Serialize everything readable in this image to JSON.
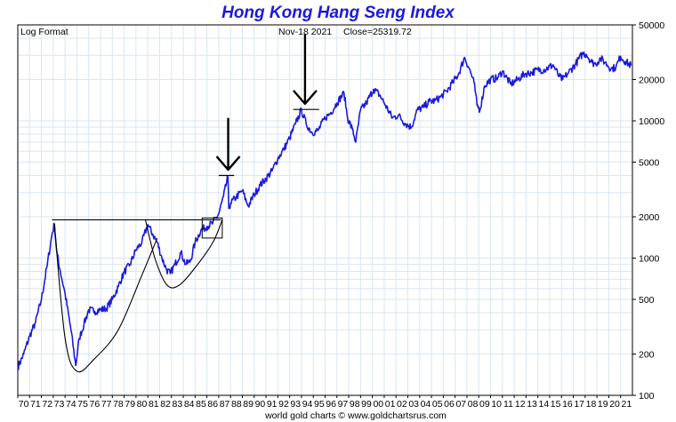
{
  "chart_data": {
    "type": "line",
    "title": "Hong Kong Hang Seng Index",
    "scale_label": "Log Format",
    "header_date": "Nov-18  2021",
    "header_close": "Close=25319.72",
    "footer": "world gold charts © www.goldchartsrus.com",
    "yscale": "log",
    "ylim": [
      100,
      50000
    ],
    "xlim": [
      1970,
      2022
    ],
    "grid": true,
    "line_color": "#1a1adc",
    "y_ticks": [
      100,
      200,
      500,
      1000,
      2000,
      5000,
      10000,
      20000,
      50000
    ],
    "y_tick_labels": [
      "100",
      "200",
      "500",
      "1000",
      "2000",
      "5000",
      "10000",
      "20000",
      "50000"
    ],
    "x_tick_labels": [
      "70",
      "71",
      "72",
      "73",
      "74",
      "75",
      "76",
      "77",
      "78",
      "79",
      "80",
      "81",
      "82",
      "83",
      "84",
      "85",
      "86",
      "87",
      "88",
      "89",
      "90",
      "91",
      "92",
      "93",
      "94",
      "95",
      "96",
      "97",
      "98",
      "99",
      "00",
      "01",
      "02",
      "03",
      "04",
      "05",
      "06",
      "07",
      "08",
      "09",
      "10",
      "11",
      "12",
      "13",
      "14",
      "15",
      "16",
      "17",
      "18",
      "19",
      "20",
      "21"
    ],
    "series": [
      {
        "x": [
          1970.0,
          1970.5,
          1971.0,
          1971.5,
          1972.0,
          1972.5,
          1972.9,
          1973.1,
          1973.3,
          1973.6,
          1974.0,
          1974.5,
          1974.9,
          1975.2,
          1975.6,
          1976.0,
          1976.5,
          1977.0,
          1977.5,
          1978.0,
          1978.5,
          1979.0,
          1979.5,
          1980.0,
          1980.5,
          1981.0,
          1981.4,
          1981.8,
          1982.2,
          1982.6,
          1982.9,
          1983.3,
          1983.8,
          1984.2,
          1984.6,
          1985.0,
          1985.5,
          1986.0,
          1986.5,
          1987.0,
          1987.4,
          1987.78,
          1987.85,
          1988.0,
          1988.5,
          1989.0,
          1989.4,
          1989.5,
          1990.0,
          1990.5,
          1991.0,
          1991.5,
          1992.0,
          1992.5,
          1993.0,
          1993.5,
          1994.0,
          1994.4,
          1994.9,
          1995.4,
          1996.0,
          1996.5,
          1997.0,
          1997.6,
          1997.9,
          1998.3,
          1998.6,
          1999.0,
          1999.5,
          2000.1,
          2000.6,
          2001.0,
          2001.7,
          2002.2,
          2002.8,
          2003.3,
          2003.8,
          2004.3,
          2004.8,
          2005.3,
          2005.8,
          2006.3,
          2006.8,
          2007.3,
          2007.8,
          2008.2,
          2008.6,
          2008.85,
          2009.1,
          2009.5,
          2010.0,
          2010.6,
          2011.0,
          2011.7,
          2012.3,
          2012.9,
          2013.5,
          2014.0,
          2014.5,
          2015.3,
          2015.8,
          2016.1,
          2016.6,
          2017.2,
          2017.8,
          2018.1,
          2018.6,
          2018.9,
          2019.3,
          2019.7,
          2020.2,
          2020.6,
          2021.0,
          2021.4,
          2021.88
        ],
        "values": [
          160,
          200,
          270,
          340,
          500,
          900,
          1500,
          1770,
          1100,
          800,
          550,
          300,
          165,
          260,
          330,
          420,
          410,
          420,
          430,
          500,
          620,
          790,
          900,
          1150,
          1300,
          1750,
          1500,
          1300,
          1000,
          820,
          770,
          900,
          1100,
          900,
          950,
          1300,
          1600,
          1700,
          1800,
          2100,
          2800,
          3900,
          2300,
          2500,
          2800,
          3100,
          2500,
          2400,
          2900,
          3400,
          3800,
          4300,
          5300,
          6200,
          7500,
          9500,
          12000,
          9500,
          8200,
          8500,
          10500,
          11500,
          13500,
          16000,
          10500,
          8700,
          7000,
          12000,
          13500,
          17000,
          15500,
          13500,
          10500,
          11000,
          9500,
          9000,
          12000,
          12500,
          13800,
          14000,
          15000,
          16500,
          19000,
          22000,
          29000,
          24000,
          19000,
          13000,
          12000,
          18000,
          20000,
          20500,
          23000,
          18500,
          20000,
          22000,
          22500,
          23500,
          23500,
          25500,
          21000,
          20000,
          22500,
          26000,
          31000,
          30500,
          26500,
          26000,
          28500,
          26500,
          24000,
          24500,
          29500,
          27000,
          25320
        ],
        "color": "#1a1adc"
      }
    ],
    "annotations": [
      {
        "type": "horizontal-line",
        "x": [
          1972.9,
          1987.2
        ],
        "y": 1900
      },
      {
        "type": "cup-curve",
        "points": [
          [
            1973.1,
            1770
          ],
          [
            1974.0,
            260
          ],
          [
            1975.0,
            150
          ],
          [
            1976.5,
            185
          ],
          [
            1978.5,
            300
          ],
          [
            1980.5,
            750
          ],
          [
            1981.8,
            1400
          ]
        ]
      },
      {
        "type": "cup-curve",
        "points": [
          [
            1980.8,
            1900
          ],
          [
            1981.6,
            1000
          ],
          [
            1982.6,
            640
          ],
          [
            1983.6,
            630
          ],
          [
            1985.0,
            850
          ],
          [
            1986.5,
            1300
          ],
          [
            1987.3,
            1900
          ]
        ]
      },
      {
        "type": "box",
        "x": [
          1985.6,
          1987.3
        ],
        "y": [
          1400,
          1960
        ]
      },
      {
        "type": "short-line",
        "x": [
          1987.0,
          1988.3
        ],
        "y": 4000
      },
      {
        "type": "short-line",
        "x": [
          1993.3,
          1995.5
        ],
        "y": 12100
      },
      {
        "type": "down-arrow",
        "x": 1987.8,
        "y_from": 10500,
        "y_to": 4400
      },
      {
        "type": "down-arrow",
        "x": 1994.3,
        "y_from": 43000,
        "y_to": 13300
      }
    ]
  }
}
